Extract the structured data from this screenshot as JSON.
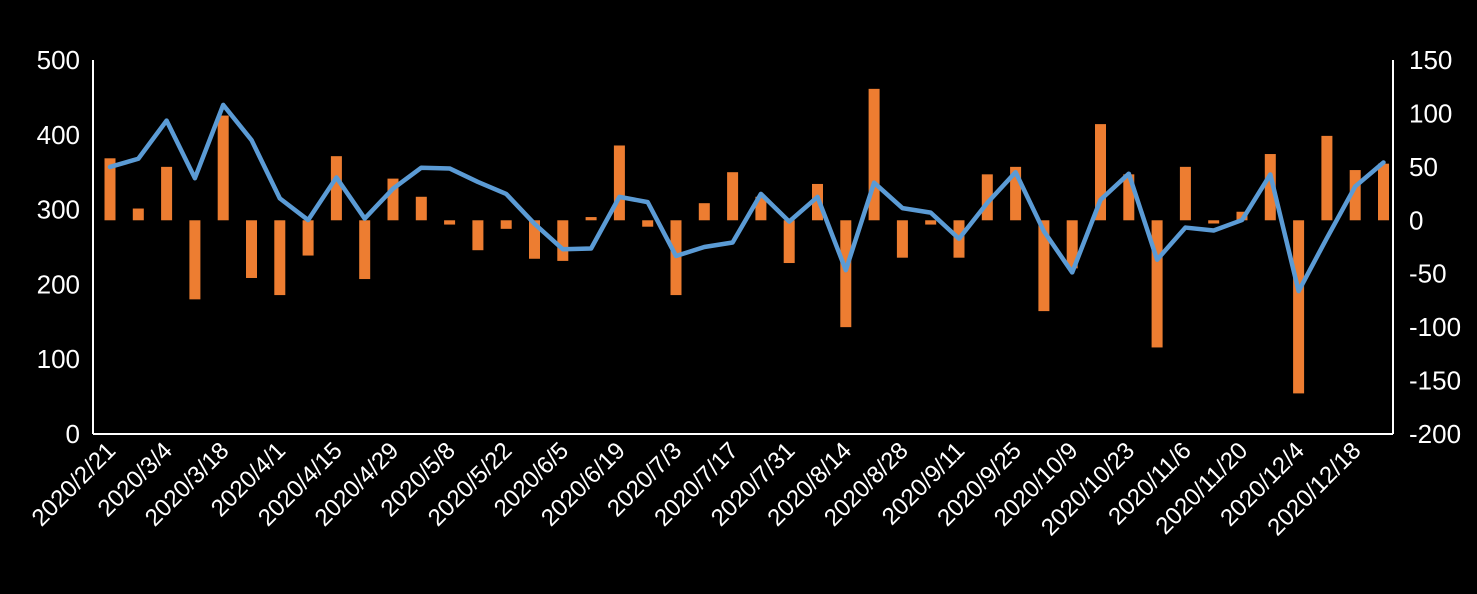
{
  "chart_data": {
    "type": "combo",
    "background": "#000000",
    "text_color": "#FFFFFF",
    "axis_color": "#FFFFFF",
    "grid": "off",
    "legend": "none",
    "n_points": 46,
    "x_tick_every": 2,
    "x_labels": [
      "2020/2/21",
      "2020/3/4",
      "2020/3/18",
      "2020/4/1",
      "2020/4/15",
      "2020/4/29",
      "2020/5/8",
      "2020/5/22",
      "2020/6/5",
      "2020/6/19",
      "2020/7/3",
      "2020/7/17",
      "2020/7/31",
      "2020/8/14",
      "2020/8/28",
      "2020/9/11",
      "2020/9/25",
      "2020/10/9",
      "2020/10/23",
      "2020/11/6",
      "2020/11/20",
      "2020/12/4",
      "2020/12/18"
    ],
    "left_axis": {
      "min": 0,
      "max": 500,
      "ticks": [
        0,
        100,
        200,
        300,
        400,
        500
      ]
    },
    "right_axis": {
      "min": -200,
      "max": 150,
      "ticks": [
        150,
        100,
        50,
        0,
        -50,
        -100,
        -150,
        -200
      ]
    },
    "series": [
      {
        "name": "weekly-change-bars",
        "type": "bar",
        "axis": "right",
        "color": "#ED7D31",
        "values": [
          58,
          11,
          50,
          -74,
          98,
          -54,
          -70,
          -33,
          60,
          -55,
          39,
          22,
          -4,
          -28,
          -8,
          -36,
          -38,
          3,
          70,
          -6,
          -70,
          16,
          45,
          22,
          -40,
          34,
          -100,
          123,
          -35,
          -4,
          -35,
          43,
          50,
          -85,
          -45,
          90,
          43,
          -119,
          50,
          -3,
          8,
          62,
          -162,
          79,
          47,
          53
        ]
      },
      {
        "name": "level-line",
        "type": "line",
        "axis": "left",
        "color": "#5B9BD5",
        "values": [
          357,
          368,
          419,
          342,
          440,
          393,
          315,
          286,
          343,
          288,
          328,
          356,
          355,
          337,
          321,
          281,
          247,
          248,
          317,
          310,
          238,
          250,
          256,
          321,
          284,
          317,
          219,
          336,
          302,
          296,
          261,
          309,
          350,
          271,
          216,
          313,
          348,
          233,
          276,
          272,
          286,
          347,
          191,
          262,
          331,
          363
        ]
      }
    ]
  }
}
